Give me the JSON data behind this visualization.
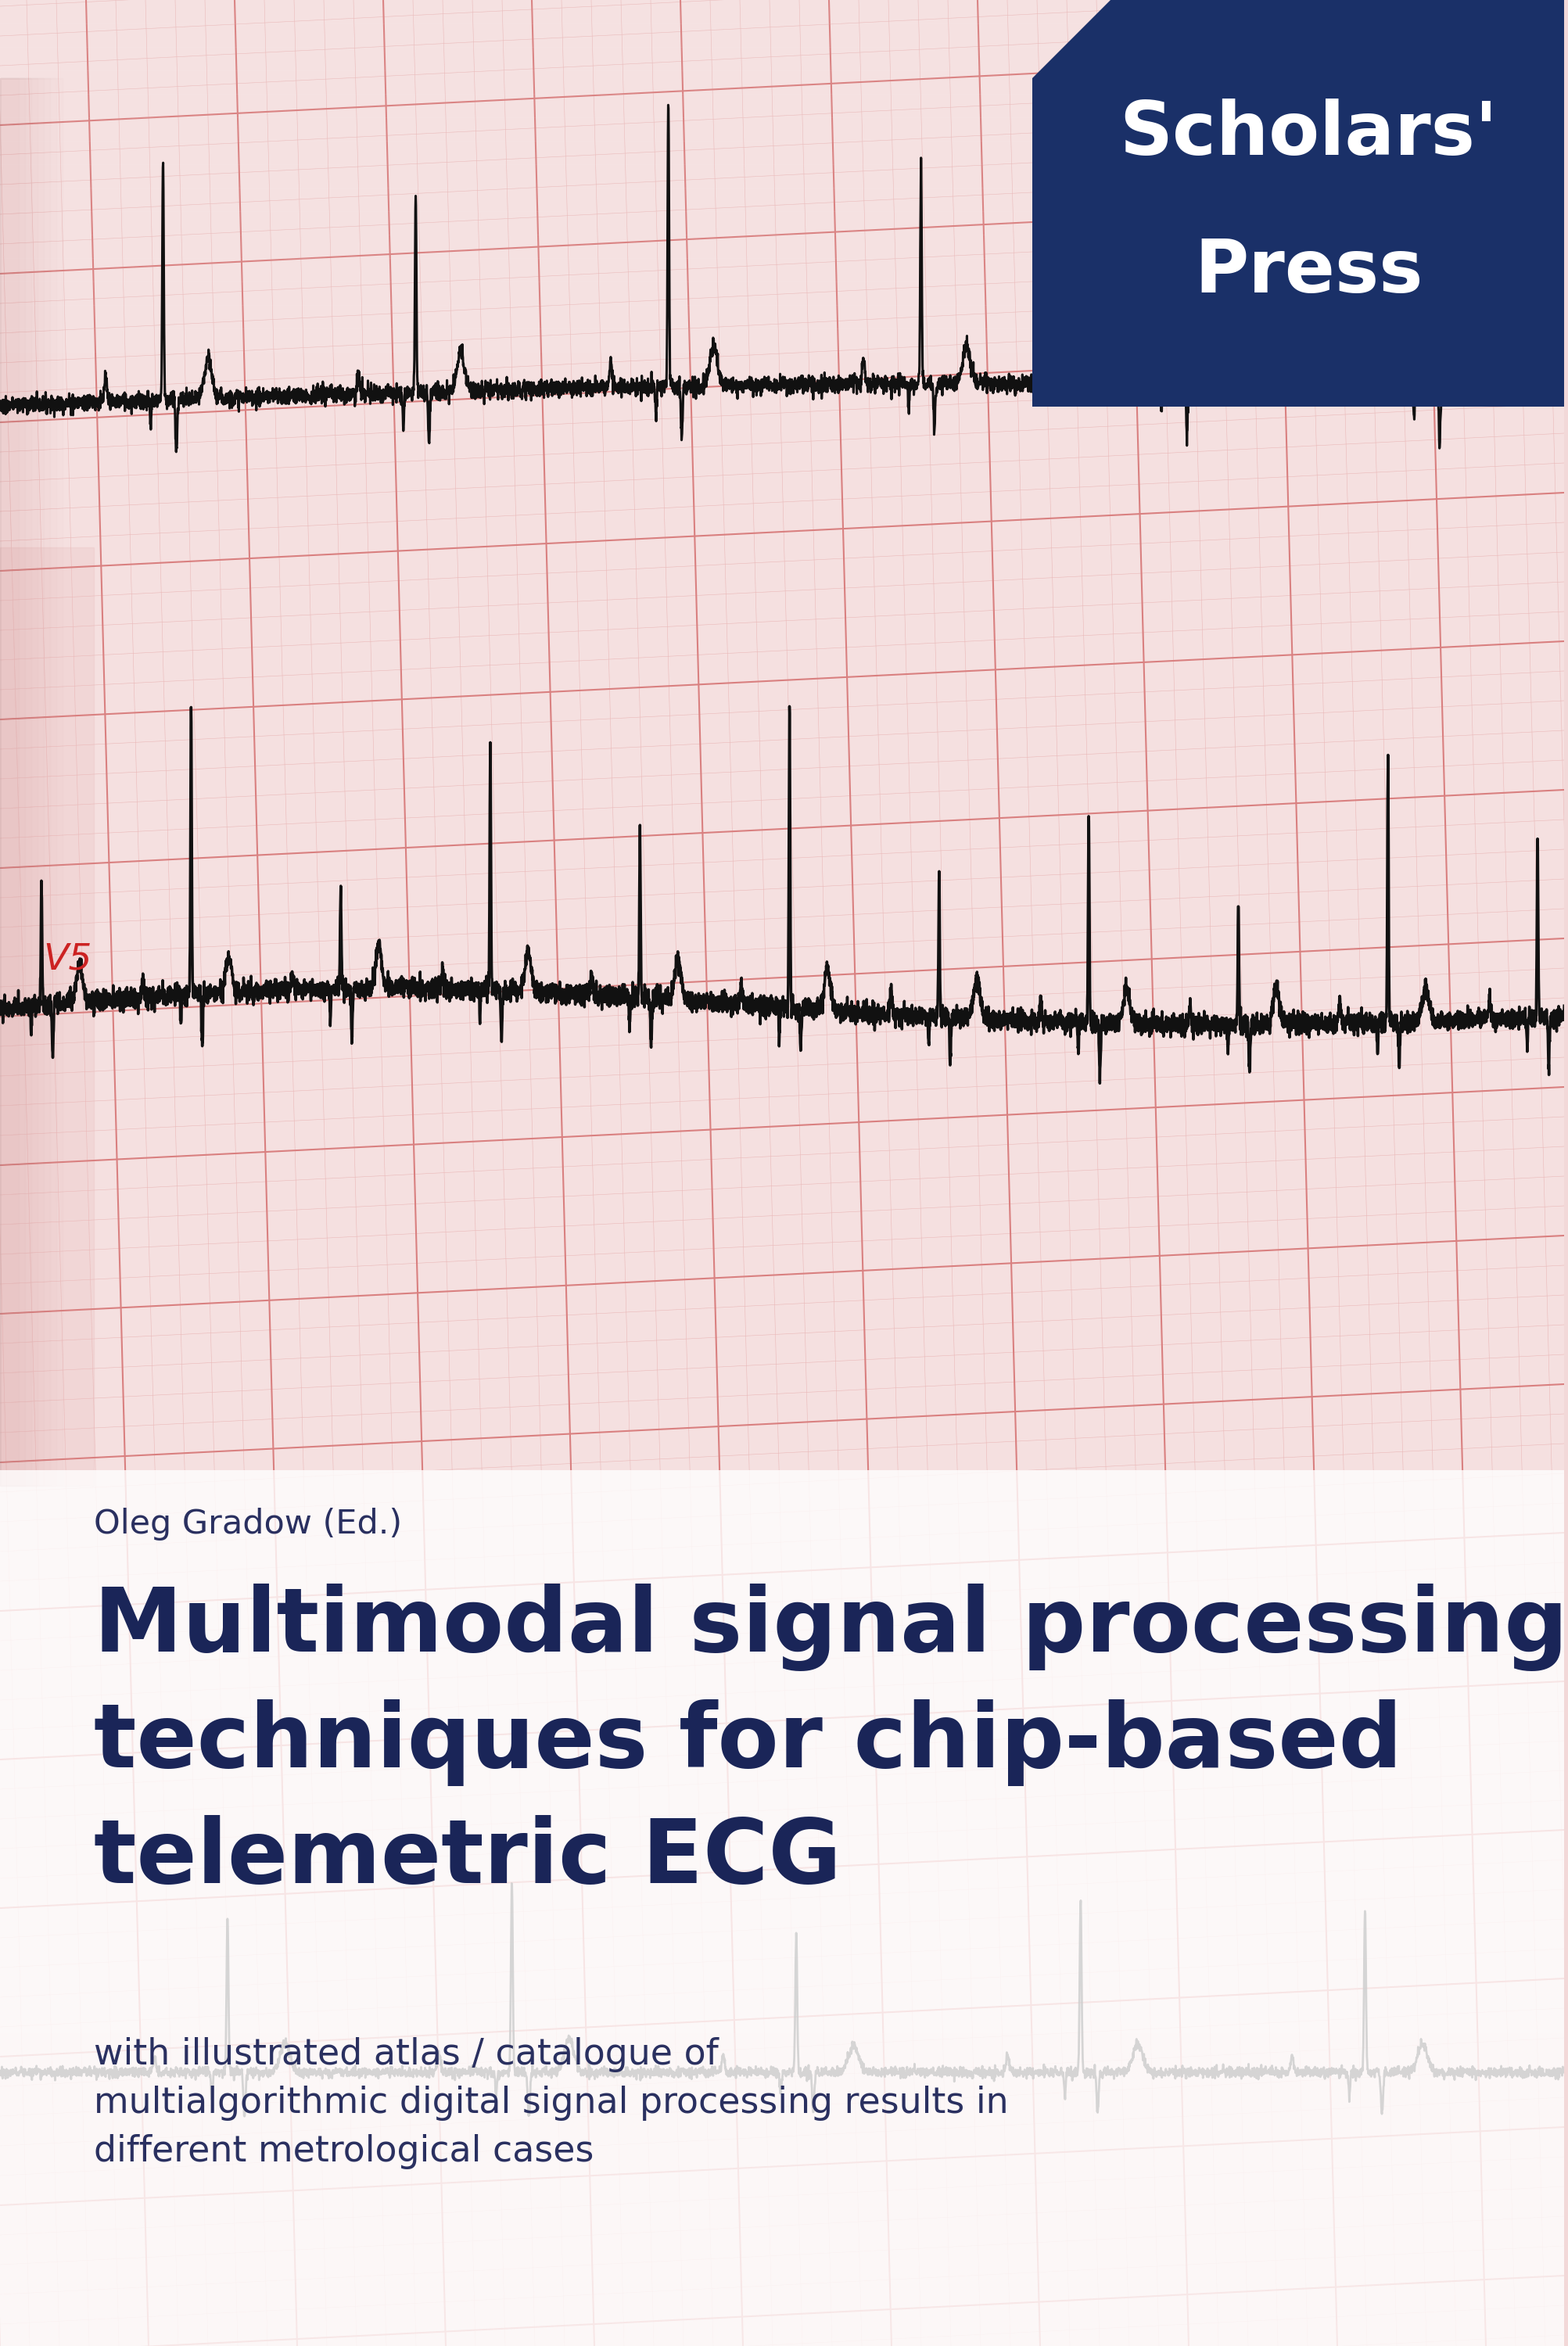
{
  "bg_color_top": "#f2d8d8",
  "bg_color_mid": "#f8e8e8",
  "bg_color_bot": "#f0d8d8",
  "ecg_grid_major_color": "#d98080",
  "ecg_grid_minor_color": "#eab8b8",
  "ecg_line_color": "#111111",
  "scholars_press_bg": "#1a3068",
  "scholars_press_text": "#ffffff",
  "scholars_press_text1": "Scholars'",
  "scholars_press_text2": "Press",
  "author_text": "Oleg Gradow (Ed.)",
  "author_color": "#2a3060",
  "title_line1": "Multimodal signal processing",
  "title_line2": "techniques for chip-based",
  "title_line3": "telemetric ECG",
  "title_color": "#1a2558",
  "subtitle_text": "with illustrated atlas / catalogue of\nmultialgorithmic digital signal processing results in\ndifferent metrological cases",
  "subtitle_color": "#2a3060",
  "white_panel_alpha": 0.8,
  "white_panel_color": "#ffffff",
  "v5_color": "#cc2222"
}
